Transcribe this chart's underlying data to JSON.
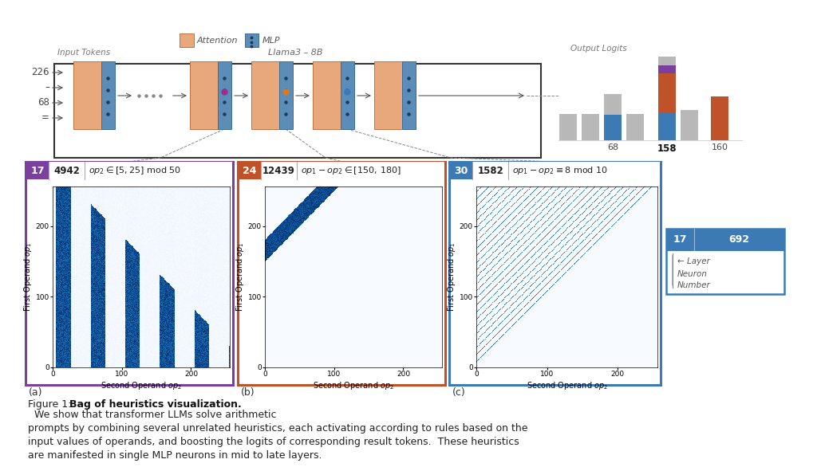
{
  "bg_color": "#ffffff",
  "attention_color": "#e8a87c",
  "mlp_color": "#5b8db8",
  "mlp_dot_color": "#1a3a5c",
  "border_a_color": "#7b3f9e",
  "border_b_color": "#c0522a",
  "border_c_color": "#3b7ab5",
  "gray_bar_color": "#b8b8b8",
  "panel_a_layer": 17,
  "panel_a_neuron": 4942,
  "panel_b_layer": 24,
  "panel_b_neuron": 12439,
  "panel_c_layer": 30,
  "panel_c_neuron": 1582,
  "legend_layer": 17,
  "legend_neuron": 692,
  "output_logits_label": "Output Logits",
  "input_tokens_label": "Input Tokens",
  "llama_label": "Llama3 – 8B",
  "attention_legend": "Attention",
  "mlp_legend": "MLP",
  "input_labels": [
    "226",
    "–",
    "68",
    "="
  ],
  "bar_label_68": "68",
  "bar_label_158": "158",
  "bar_label_160": "160",
  "caption_prefix": "Figure 1:  ",
  "caption_bold": "Bag of heuristics visualization.",
  "caption_rest": "  We show that transformer LLMs solve arithmetic\nprompts by combining several unrelated heuristics, each activating according to rules based on the\ninput values of operands, and boosting the logits of corresponding result tokens.  These heuristics\nare manifested in single MLP neurons in mid to late layers."
}
